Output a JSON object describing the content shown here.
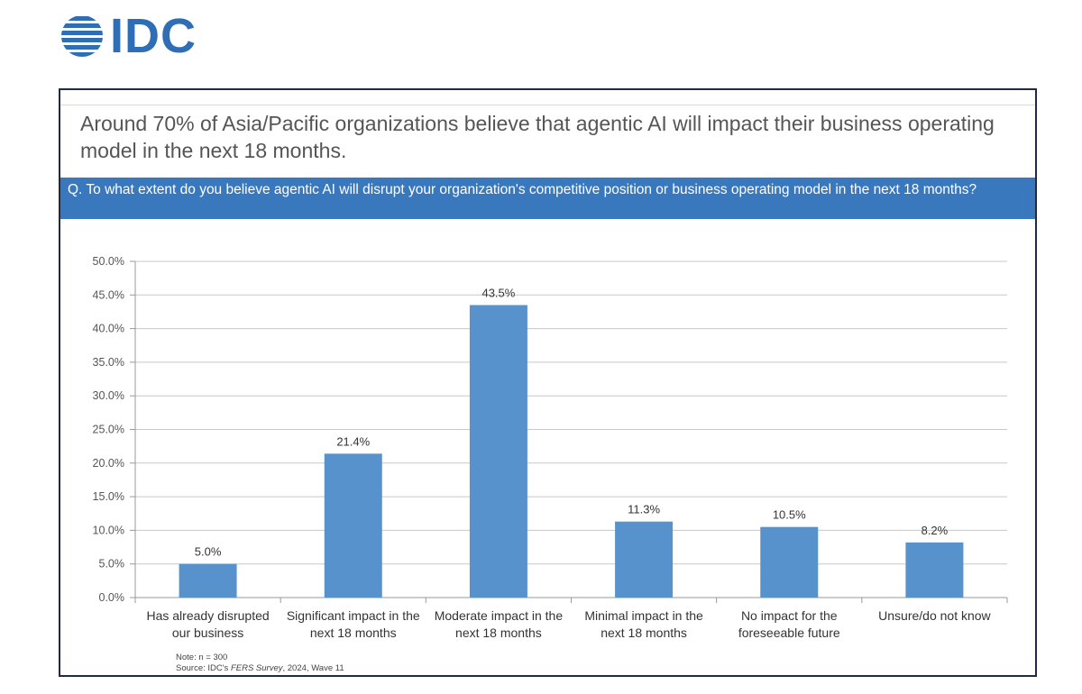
{
  "logo": {
    "text": "IDC"
  },
  "headline": "Around 70% of Asia/Pacific organizations believe that agentic AI will impact their business operating model in the next 18 months.",
  "question": "Q. To what extent do you believe agentic AI will disrupt your organization's competitive position or business operating model in the next 18 months?",
  "colors": {
    "bar": "#5892cc",
    "question_band": "#3a78bd",
    "frame": "#1f2a44",
    "logo": "#2f6db5"
  },
  "chart_data": {
    "type": "bar",
    "categories": [
      [
        "Has already disrupted",
        "our business"
      ],
      [
        "Significant impact in the",
        "next 18 months"
      ],
      [
        "Moderate impact in the",
        "next 18 months"
      ],
      [
        "Minimal impact in the",
        "next 18 months"
      ],
      [
        "No impact for the",
        "foreseeable future"
      ],
      [
        "Unsure/do not know"
      ]
    ],
    "values": [
      5.0,
      21.4,
      43.5,
      11.3,
      10.5,
      8.2
    ],
    "value_labels": [
      "5.0%",
      "21.4%",
      "43.5%",
      "11.3%",
      "10.5%",
      "8.2%"
    ],
    "ylim": [
      0,
      50
    ],
    "yticks": [
      0,
      5,
      10,
      15,
      20,
      25,
      30,
      35,
      40,
      45,
      50
    ],
    "ytick_labels": [
      "0.0%",
      "5.0%",
      "10.0%",
      "15.0%",
      "20.0%",
      "25.0%",
      "30.0%",
      "35.0%",
      "40.0%",
      "45.0%",
      "50.0%"
    ],
    "grid": true,
    "legend": "none"
  },
  "note": {
    "line1": "Note: n = 300",
    "source_prefix": "Source: IDC's ",
    "source_italic": "FERS Survey",
    "source_suffix": ", 2024, Wave 11"
  }
}
